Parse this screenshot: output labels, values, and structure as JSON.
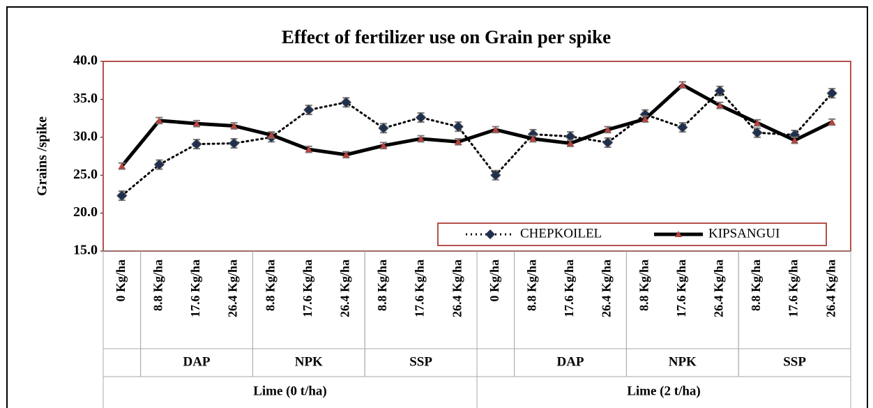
{
  "chart_data": {
    "type": "line",
    "title": "Effect of fertilizer use on Grain per spike",
    "y_label": "Grains /spike",
    "categories": [
      "0 Kg/ha",
      "8.8 Kg/ha",
      "17.6 Kg/ha",
      "26.4 Kg/ha",
      "8.8 Kg/ha",
      "17.6 Kg/ha",
      "26.4 Kg/ha",
      "8.8 Kg/ha",
      "17.6 Kg/ha",
      "26.4 Kg/ha",
      "0 Kg/ha",
      "8.8 Kg/ha",
      "17.6 Kg/ha",
      "26.4 Kg/ha",
      "8.8 Kg/ha",
      "17.6 Kg/ha",
      "26.4 Kg/ha",
      "8.8 Kg/ha",
      "17.6 Kg/ha",
      "26.4 Kg/ha"
    ],
    "groups": [
      null,
      "DAP",
      "DAP",
      "DAP",
      "NPK",
      "NPK",
      "NPK",
      "SSP",
      "SSP",
      "SSP",
      null,
      "DAP",
      "DAP",
      "DAP",
      "NPK",
      "NPK",
      "NPK",
      "SSP",
      "SSP",
      "SSP"
    ],
    "supergroups": [
      "Lime (0 t/ha)",
      "Lime (0 t/ha)",
      "Lime (0 t/ha)",
      "Lime (0 t/ha)",
      "Lime (0 t/ha)",
      "Lime (0 t/ha)",
      "Lime (0 t/ha)",
      "Lime (0 t/ha)",
      "Lime (0 t/ha)",
      "Lime (0 t/ha)",
      "Lime (2 t/ha)",
      "Lime (2 t/ha)",
      "Lime (2 t/ha)",
      "Lime (2 t/ha)",
      "Lime (2 t/ha)",
      "Lime (2 t/ha)",
      "Lime (2 t/ha)",
      "Lime (2 t/ha)",
      "Lime (2 t/ha)",
      "Lime (2 t/ha)"
    ],
    "series": [
      {
        "name": "CHEPKOILEL",
        "color": "#000000",
        "marker_color": "#1f2f4f",
        "line_style": "dotted",
        "marker": "diamond",
        "values": [
          22.3,
          26.4,
          29.1,
          29.2,
          30.0,
          33.6,
          34.6,
          31.2,
          32.6,
          31.4,
          25.0,
          30.4,
          30.1,
          29.3,
          33.0,
          31.3,
          36.1,
          30.6,
          30.3,
          35.8
        ],
        "errors": [
          0.6,
          0.6,
          0.6,
          0.6,
          0.6,
          0.6,
          0.6,
          0.6,
          0.6,
          0.6,
          0.6,
          0.6,
          0.6,
          0.6,
          0.6,
          0.6,
          0.6,
          0.6,
          0.6,
          0.6
        ]
      },
      {
        "name": "KIPSANGUI",
        "color": "#000000",
        "marker_color": "#b5443f",
        "line_style": "solid",
        "marker": "triangle",
        "values": [
          26.2,
          32.2,
          31.8,
          31.5,
          30.3,
          28.4,
          27.7,
          28.9,
          29.8,
          29.4,
          31.0,
          29.8,
          29.2,
          31.0,
          32.4,
          36.9,
          34.2,
          31.9,
          29.6,
          32.0
        ],
        "errors": [
          0.4,
          0.4,
          0.4,
          0.4,
          0.4,
          0.4,
          0.4,
          0.4,
          0.4,
          0.4,
          0.4,
          0.4,
          0.4,
          0.4,
          0.4,
          0.4,
          0.4,
          0.4,
          0.4,
          0.4
        ]
      }
    ],
    "ylim": [
      15,
      40
    ],
    "yticks": [
      {
        "value": 15,
        "label": "15.0"
      },
      {
        "value": 20,
        "label": "20.0"
      },
      {
        "value": 25,
        "label": "25.0"
      },
      {
        "value": 30,
        "label": "30.0"
      },
      {
        "value": 35,
        "label": "35.0"
      },
      {
        "value": 40,
        "label": "40.0"
      }
    ],
    "legend": "bottom-right",
    "frame_color": "#b5504c"
  }
}
